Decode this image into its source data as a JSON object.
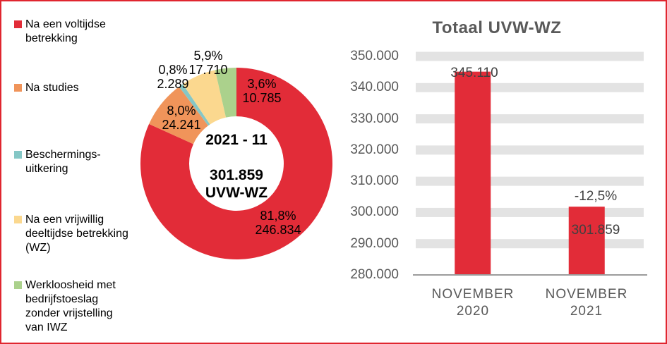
{
  "colors": {
    "red": "#E22C38",
    "orange": "#F0945A",
    "teal": "#85C7C6",
    "yellow": "#FBD88F",
    "green": "#ABD18C",
    "border": "#E0262F",
    "grid_band": "#E3E3E3",
    "axis_line": "#9C9C9C",
    "axis_text": "#595959",
    "bar_label_text": "#404040"
  },
  "legend": {
    "items": [
      {
        "label": "Na een voltijdse\nbetrekking"
      },
      {
        "label": "Na studies"
      },
      {
        "label": "Beschermings-\nuitkering"
      },
      {
        "label": "Na een vrijwillig\ndeeltijdse betrekking\n(WZ)"
      },
      {
        "label": "Werkloosheid met\nbedrijfstoeslag\nzonder vrijstelling\nvan IWZ"
      }
    ]
  },
  "chart_data": [
    {
      "type": "pie",
      "subtype": "donut",
      "direction": "clockwise",
      "start_angle_deg": 0,
      "total": 301859,
      "center": {
        "period": "2021 - 11",
        "total": "301.859",
        "unit": "UVW-WZ"
      },
      "slices": [
        {
          "name": "Na een voltijdse betrekking",
          "value": 246834,
          "pct_label": "81,8%",
          "value_label": "246.834",
          "color": "#E22C38"
        },
        {
          "name": "Na studies",
          "value": 24241,
          "pct_label": "8,0%",
          "value_label": "24.241",
          "color": "#F0945A"
        },
        {
          "name": "Beschermingsuitkering",
          "value": 2289,
          "pct_label": "0,8%",
          "value_label": "2.289",
          "color": "#85C7C6"
        },
        {
          "name": "Na een vrijwillig deeltijdse betrekking (WZ)",
          "value": 17710,
          "pct_label": "5,9%",
          "value_label": "17.710",
          "color": "#FBD88F"
        },
        {
          "name": "Werkloosheid met bedrijfstoeslag zonder vrijstelling van IWZ",
          "value": 10785,
          "pct_label": "3,6%",
          "value_label": "10.785",
          "color": "#ABD18C"
        }
      ]
    },
    {
      "type": "bar",
      "title": "Totaal UVW-WZ",
      "bar_color": "#E22C38",
      "ylim": [
        280000,
        350000
      ],
      "ytick_labels": [
        "350.000",
        "340.000",
        "330.000",
        "320.000",
        "310.000",
        "300.000",
        "290.000",
        "280.000"
      ],
      "grid": "horizontal-bands",
      "legend_position": "none",
      "bars": [
        {
          "category": "NOVEMBER\n2020",
          "value": 345110,
          "label": "345.110"
        },
        {
          "category": "NOVEMBER\n2021",
          "value": 301859,
          "label": "301.859",
          "delta_label": "-12,5%"
        }
      ]
    }
  ]
}
